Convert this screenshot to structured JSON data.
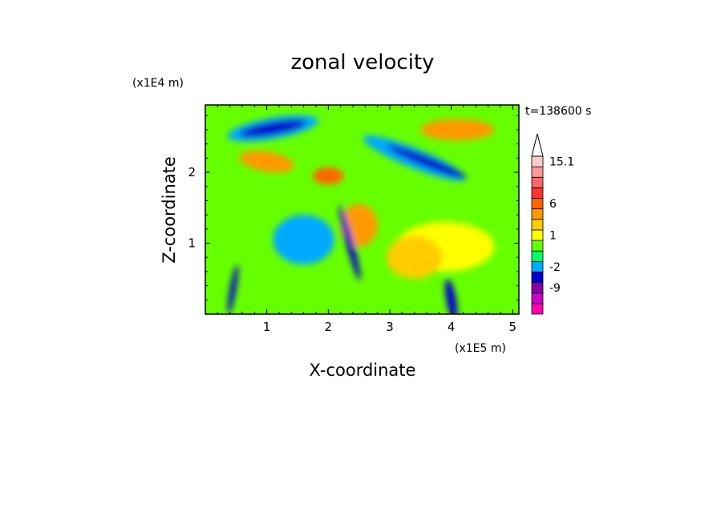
{
  "chart_data": {
    "type": "heatmap",
    "title": "zonal velocity",
    "xlabel": "X-coordinate",
    "ylabel": "Z-coordinate",
    "x_unit": "(x1E5 m)",
    "y_unit": "(x1E4 m)",
    "time_label": "t=138600 s",
    "xlim": [
      0.0,
      5.1
    ],
    "ylim": [
      0.0,
      2.95
    ],
    "x_ticks": [
      {
        "value": 1,
        "label": "1"
      },
      {
        "value": 2,
        "label": "2"
      },
      {
        "value": 3,
        "label": "3"
      },
      {
        "value": 4,
        "label": "4"
      },
      {
        "value": 5,
        "label": "5"
      }
    ],
    "y_ticks": [
      {
        "value": 1,
        "label": "1"
      },
      {
        "value": 2,
        "label": "2"
      }
    ],
    "colorbar": {
      "colors": [
        "#ff00b0",
        "#c800c8",
        "#8800aa",
        "#0000c8",
        "#00aaff",
        "#00ff66",
        "#66ff00",
        "#ffff00",
        "#ffcc00",
        "#ff9900",
        "#ff6600",
        "#ff3333",
        "#ff6666",
        "#ff9999",
        "#ffcccc"
      ],
      "tick_labels": [
        {
          "band": 2,
          "label": "-9"
        },
        {
          "band": 4,
          "label": "-2"
        },
        {
          "band": 7,
          "label": "1"
        },
        {
          "band": 10,
          "label": "6"
        },
        {
          "band": 14,
          "label": "15.1"
        }
      ]
    },
    "field_regions": [
      {
        "x": 1.1,
        "y": 2.62,
        "rx": 0.55,
        "ry": 0.09,
        "angle": -10,
        "level": "#0000c8"
      },
      {
        "x": 1.1,
        "y": 2.62,
        "rx": 0.75,
        "ry": 0.15,
        "angle": -10,
        "level": "#00aaff"
      },
      {
        "x": 3.6,
        "y": 2.15,
        "rx": 0.7,
        "ry": 0.07,
        "angle": 22,
        "level": "#0000c8"
      },
      {
        "x": 3.4,
        "y": 2.2,
        "rx": 0.9,
        "ry": 0.14,
        "angle": 22,
        "level": "#00aaff"
      },
      {
        "x": 4.1,
        "y": 2.6,
        "rx": 0.6,
        "ry": 0.15,
        "angle": 0,
        "level": "#ff9900"
      },
      {
        "x": 1.0,
        "y": 2.15,
        "rx": 0.45,
        "ry": 0.14,
        "angle": 10,
        "level": "#ff9900"
      },
      {
        "x": 2.0,
        "y": 1.95,
        "rx": 0.25,
        "ry": 0.12,
        "angle": 0,
        "level": "#ff6600"
      },
      {
        "x": 2.5,
        "y": 1.25,
        "rx": 0.3,
        "ry": 0.3,
        "angle": 0,
        "level": "#ff9900"
      },
      {
        "x": 1.6,
        "y": 1.05,
        "rx": 0.5,
        "ry": 0.35,
        "angle": 0,
        "level": "#00aaff"
      },
      {
        "x": 3.9,
        "y": 0.95,
        "rx": 0.8,
        "ry": 0.35,
        "angle": 0,
        "level": "#ffff00"
      },
      {
        "x": 3.4,
        "y": 0.8,
        "rx": 0.45,
        "ry": 0.3,
        "angle": 0,
        "level": "#ffcc00"
      },
      {
        "x": 2.35,
        "y": 1.0,
        "rx": 0.06,
        "ry": 0.55,
        "angle": -15,
        "level": "#0000c8"
      },
      {
        "x": 0.45,
        "y": 0.35,
        "rx": 0.05,
        "ry": 0.35,
        "angle": 10,
        "level": "#0000c8"
      },
      {
        "x": 4.0,
        "y": 0.2,
        "rx": 0.08,
        "ry": 0.3,
        "angle": -10,
        "level": "#0000c8"
      }
    ]
  }
}
